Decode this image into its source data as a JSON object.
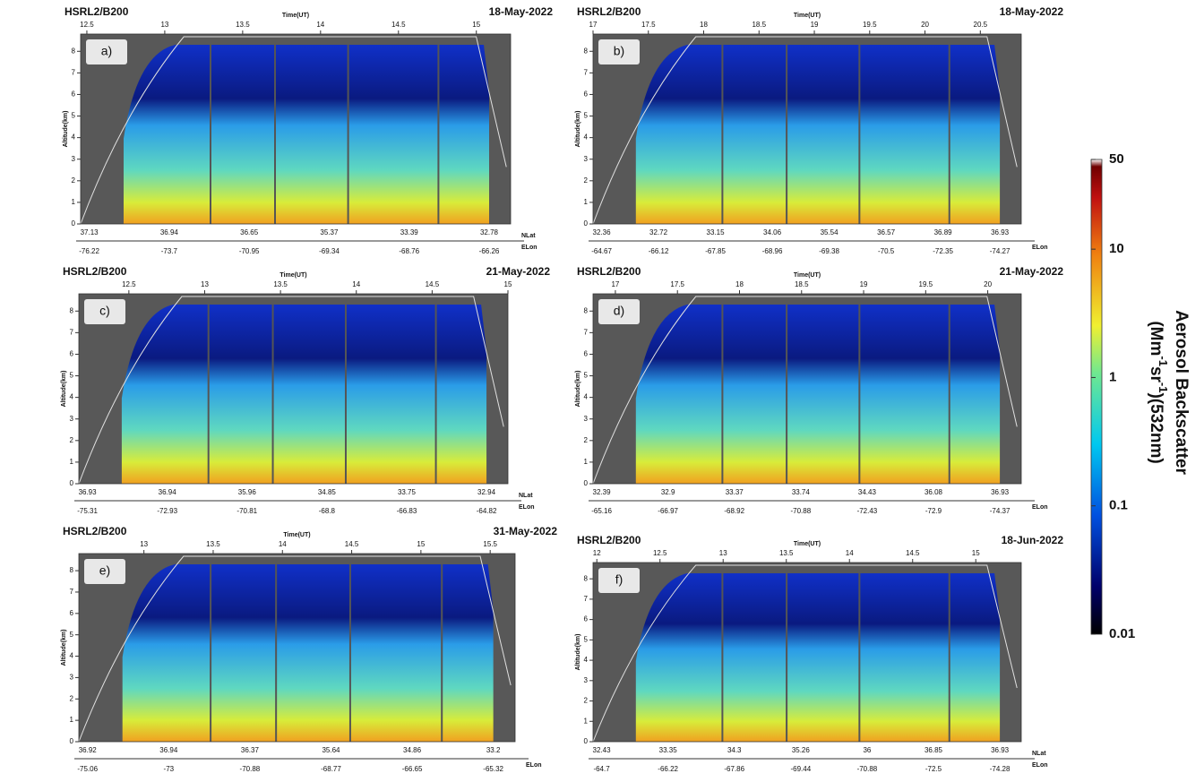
{
  "panels": [
    {
      "label": "a)",
      "instrument": "HSRL2/B200",
      "date": "18-May-2022",
      "time_label": "Time(UT)",
      "y_label": "Altitude(km)",
      "time_lim": [
        12.46,
        15.22
      ],
      "time_ticks": [
        12.5,
        13,
        13.5,
        14,
        14.5,
        15
      ],
      "ylim": [
        0,
        8.8
      ],
      "yticks": [
        0,
        1,
        2,
        3,
        4,
        5,
        6,
        7,
        8
      ],
      "lat_label": "NLat",
      "lat_ticks": [
        37.13,
        36.94,
        36.65,
        35.37,
        33.39,
        32.78
      ],
      "lon_label": "ELon",
      "lon_ticks": [
        -76.22,
        -73.7,
        -70.95,
        -69.34,
        -68.76,
        -66.26
      ]
    },
    {
      "label": "b)",
      "instrument": "HSRL2/B200",
      "date": "18-May-2022",
      "time_label": "Time(UT)",
      "y_label": "Altitude(km)",
      "time_lim": [
        17,
        20.87
      ],
      "time_ticks": [
        17,
        17.5,
        18,
        18.5,
        19,
        19.5,
        20,
        20.5
      ],
      "ylim": [
        0,
        8.8
      ],
      "yticks": [
        0,
        1,
        2,
        3,
        4,
        5,
        6,
        7,
        8
      ],
      "lat_ticks": [
        32.36,
        32.72,
        33.15,
        34.06,
        35.54,
        36.57,
        36.89,
        36.93
      ],
      "lon_label": "ELon",
      "lon_ticks": [
        -64.67,
        -66.12,
        -67.85,
        -68.96,
        -69.38,
        -70.5,
        -72.35,
        -74.27
      ]
    },
    {
      "label": "c)",
      "instrument": "HSRL2/B200",
      "date": "21-May-2022",
      "time_label": "Time(UT)",
      "y_label": "Altitude(km)",
      "time_lim": [
        12.17,
        15.0
      ],
      "time_ticks": [
        12.5,
        13,
        13.5,
        14,
        14.5,
        15
      ],
      "ylim": [
        0,
        8.8
      ],
      "yticks": [
        0,
        1,
        2,
        3,
        4,
        5,
        6,
        7,
        8
      ],
      "lat_label": "NLat",
      "lat_ticks": [
        36.93,
        36.94,
        35.96,
        34.85,
        33.75,
        32.94
      ],
      "lon_label": "ELon",
      "lon_ticks": [
        -75.31,
        -72.93,
        -70.81,
        -68.8,
        -66.83,
        -64.82
      ]
    },
    {
      "label": "d)",
      "instrument": "HSRL2/B200",
      "date": "21-May-2022",
      "time_label": "Time(UT)",
      "y_label": "Altitude(km)",
      "time_lim": [
        16.82,
        20.27
      ],
      "time_ticks": [
        17,
        17.5,
        18,
        18.5,
        19,
        19.5,
        20
      ],
      "ylim": [
        0,
        8.8
      ],
      "yticks": [
        0,
        1,
        2,
        3,
        4,
        5,
        6,
        7,
        8
      ],
      "lat_ticks": [
        32.39,
        32.9,
        33.37,
        33.74,
        34.43,
        36.08,
        36.93
      ],
      "lon_label": "ELon",
      "lon_ticks": [
        -65.16,
        -66.97,
        -68.92,
        -70.88,
        -72.43,
        -72.9,
        -74.37
      ]
    },
    {
      "label": "e)",
      "instrument": "HSRL2/B200",
      "date": "31-May-2022",
      "time_label": "Time(UT)",
      "y_label": "Altitude(km)",
      "time_lim": [
        12.53,
        15.68
      ],
      "time_ticks": [
        13,
        13.5,
        14,
        14.5,
        15,
        15.5
      ],
      "ylim": [
        0,
        8.8
      ],
      "yticks": [
        0,
        1,
        2,
        3,
        4,
        5,
        6,
        7,
        8
      ],
      "lat_ticks": [
        36.92,
        36.94,
        36.37,
        35.64,
        34.86,
        33.2
      ],
      "lon_label": "ELon",
      "lon_ticks": [
        -75.06,
        -73,
        -70.88,
        -68.77,
        -66.65,
        -65.32
      ]
    },
    {
      "label": "f)",
      "instrument": "HSRL2/B200",
      "date": "18-Jun-2022",
      "time_label": "Time(UT)",
      "y_label": "Altitude(km)",
      "time_lim": [
        11.97,
        15.36
      ],
      "time_ticks": [
        12,
        12.5,
        13,
        13.5,
        14,
        14.5,
        15
      ],
      "ylim": [
        0,
        8.8
      ],
      "yticks": [
        0,
        1,
        2,
        3,
        4,
        5,
        6,
        7,
        8
      ],
      "lat_label": "NLat",
      "lat_ticks": [
        32.43,
        33.35,
        34.3,
        35.26,
        36,
        36.85,
        36.93
      ],
      "lon_label": "ELon",
      "lon_ticks": [
        -64.7,
        -66.22,
        -67.86,
        -69.44,
        -70.88,
        -72.5,
        -74.28
      ]
    }
  ],
  "colorbar": {
    "title": "Aerosol Backscatter",
    "units_parts": [
      "(Mm",
      "-1",
      "sr",
      "-1",
      ")(532nm)"
    ],
    "log_scale": true,
    "lim": [
      0.01,
      50
    ],
    "ticks": [
      50,
      10,
      1,
      0.1,
      0.01
    ]
  }
}
